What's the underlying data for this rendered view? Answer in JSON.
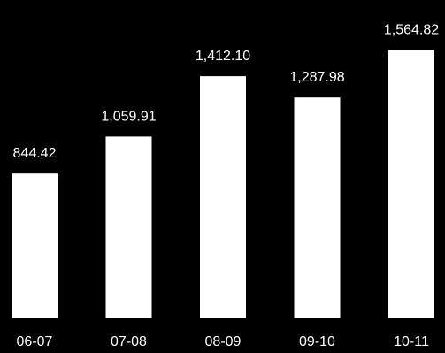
{
  "chart_data": {
    "type": "bar",
    "categories": [
      "06-07",
      "07-08",
      "08-09",
      "09-10",
      "10-11"
    ],
    "values": [
      844.42,
      1059.91,
      1412.1,
      1287.98,
      1564.82
    ],
    "value_labels": [
      "844.42",
      "1,059.91",
      "1,412.10",
      "1,287.98",
      "1,564.82"
    ],
    "title": "",
    "xlabel": "",
    "ylabel": "",
    "ylim": [
      0,
      1650
    ],
    "grid": false,
    "legend": "none",
    "colors": {
      "background": "#000000",
      "bar": "#ffffff",
      "text": "#ffffff"
    }
  }
}
